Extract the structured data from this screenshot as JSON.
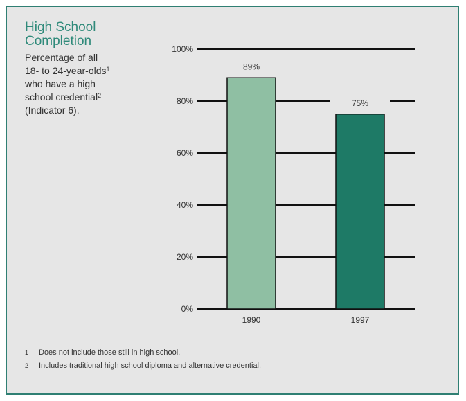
{
  "title_lines": [
    "High School",
    "Completion"
  ],
  "subtitle": {
    "line1": "Percentage of all",
    "line2": "18- to 24-year-olds",
    "line2_sup": "1",
    "line3": "who have a high",
    "line4": "school credential",
    "line4_sup": "2",
    "line5": "(Indicator 6)."
  },
  "chart_data": {
    "type": "bar",
    "categories": [
      "1990",
      "1997"
    ],
    "values": [
      89,
      75
    ],
    "data_labels": [
      "89%",
      "75%"
    ],
    "bar_colors": [
      "#8fbfa3",
      "#1e7a66"
    ],
    "yticks": [
      "0%",
      "20%",
      "40%",
      "60%",
      "80%",
      "100%"
    ],
    "ylim": [
      0,
      100
    ],
    "grid": true
  },
  "footnotes": [
    {
      "mark": "1",
      "text": "Does not include those still in high school."
    },
    {
      "mark": "2",
      "text": "Includes traditional high school diploma and alternative credential."
    }
  ]
}
